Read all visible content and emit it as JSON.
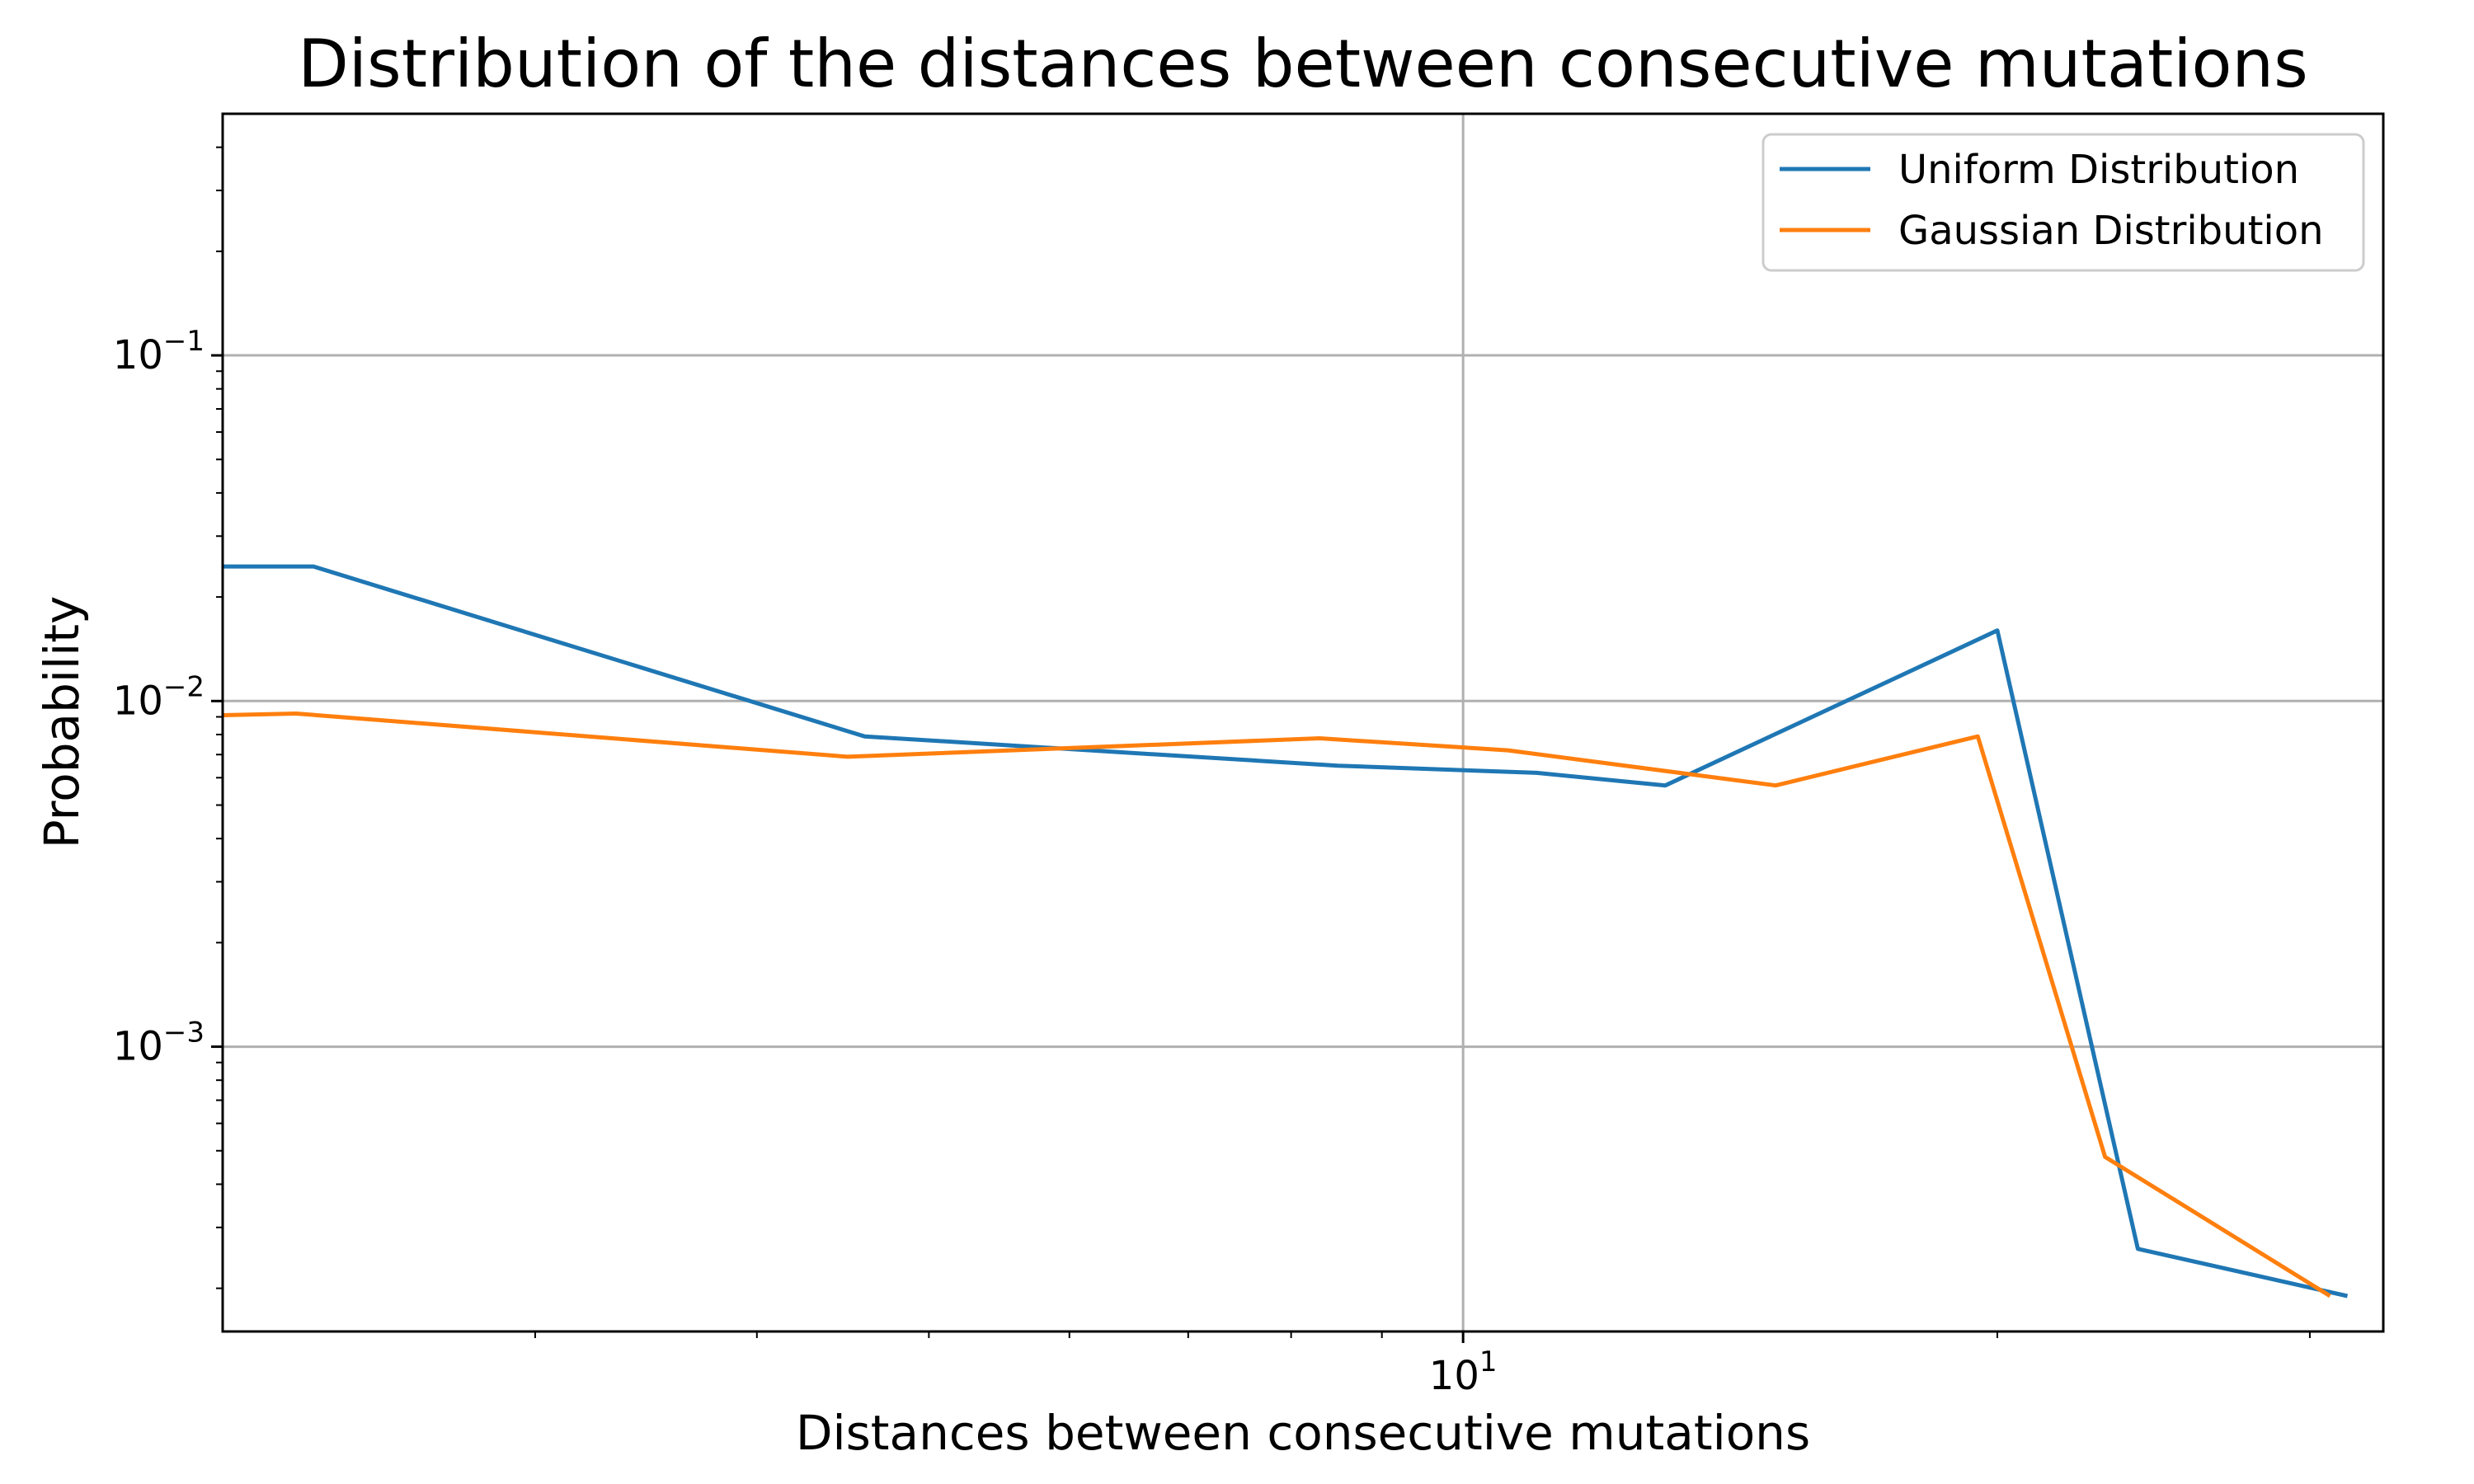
{
  "chart_data": {
    "type": "line",
    "title": "Distribution of the distances between consecutive mutations",
    "xlabel": "Distances between consecutive mutations",
    "ylabel": "Probability",
    "x_scale": "log",
    "y_scale": "log",
    "xlim": [
      2.0,
      33.0
    ],
    "ylim": [
      0.00015,
      0.5
    ],
    "grid": true,
    "legend_position": "top-right",
    "x_ticks": [
      {
        "value": 10,
        "base": "10",
        "exp": "1"
      }
    ],
    "y_ticks": [
      {
        "value": 0.1,
        "base": "10",
        "exp": "−1"
      },
      {
        "value": 0.01,
        "base": "10",
        "exp": "−2"
      },
      {
        "value": 0.001,
        "base": "10",
        "exp": "−3"
      }
    ],
    "series": [
      {
        "name": "Uniform Distribution",
        "color": "#1f77b4",
        "x": [
          2.0,
          2.25,
          4.6,
          8.5,
          11.0,
          13.0,
          20.0,
          24.0,
          31.5
        ],
        "y": [
          0.0245,
          0.0245,
          0.0079,
          0.0065,
          0.0062,
          0.0057,
          0.016,
          0.00026,
          0.00019
        ]
      },
      {
        "name": "Gaussian Distribution",
        "color": "#ff7f0e",
        "x": [
          2.0,
          2.2,
          4.5,
          8.3,
          10.6,
          15.0,
          19.5,
          23.0,
          30.8
        ],
        "y": [
          0.0091,
          0.0092,
          0.0069,
          0.0078,
          0.0072,
          0.0057,
          0.0079,
          0.00048,
          0.00019
        ]
      }
    ]
  }
}
